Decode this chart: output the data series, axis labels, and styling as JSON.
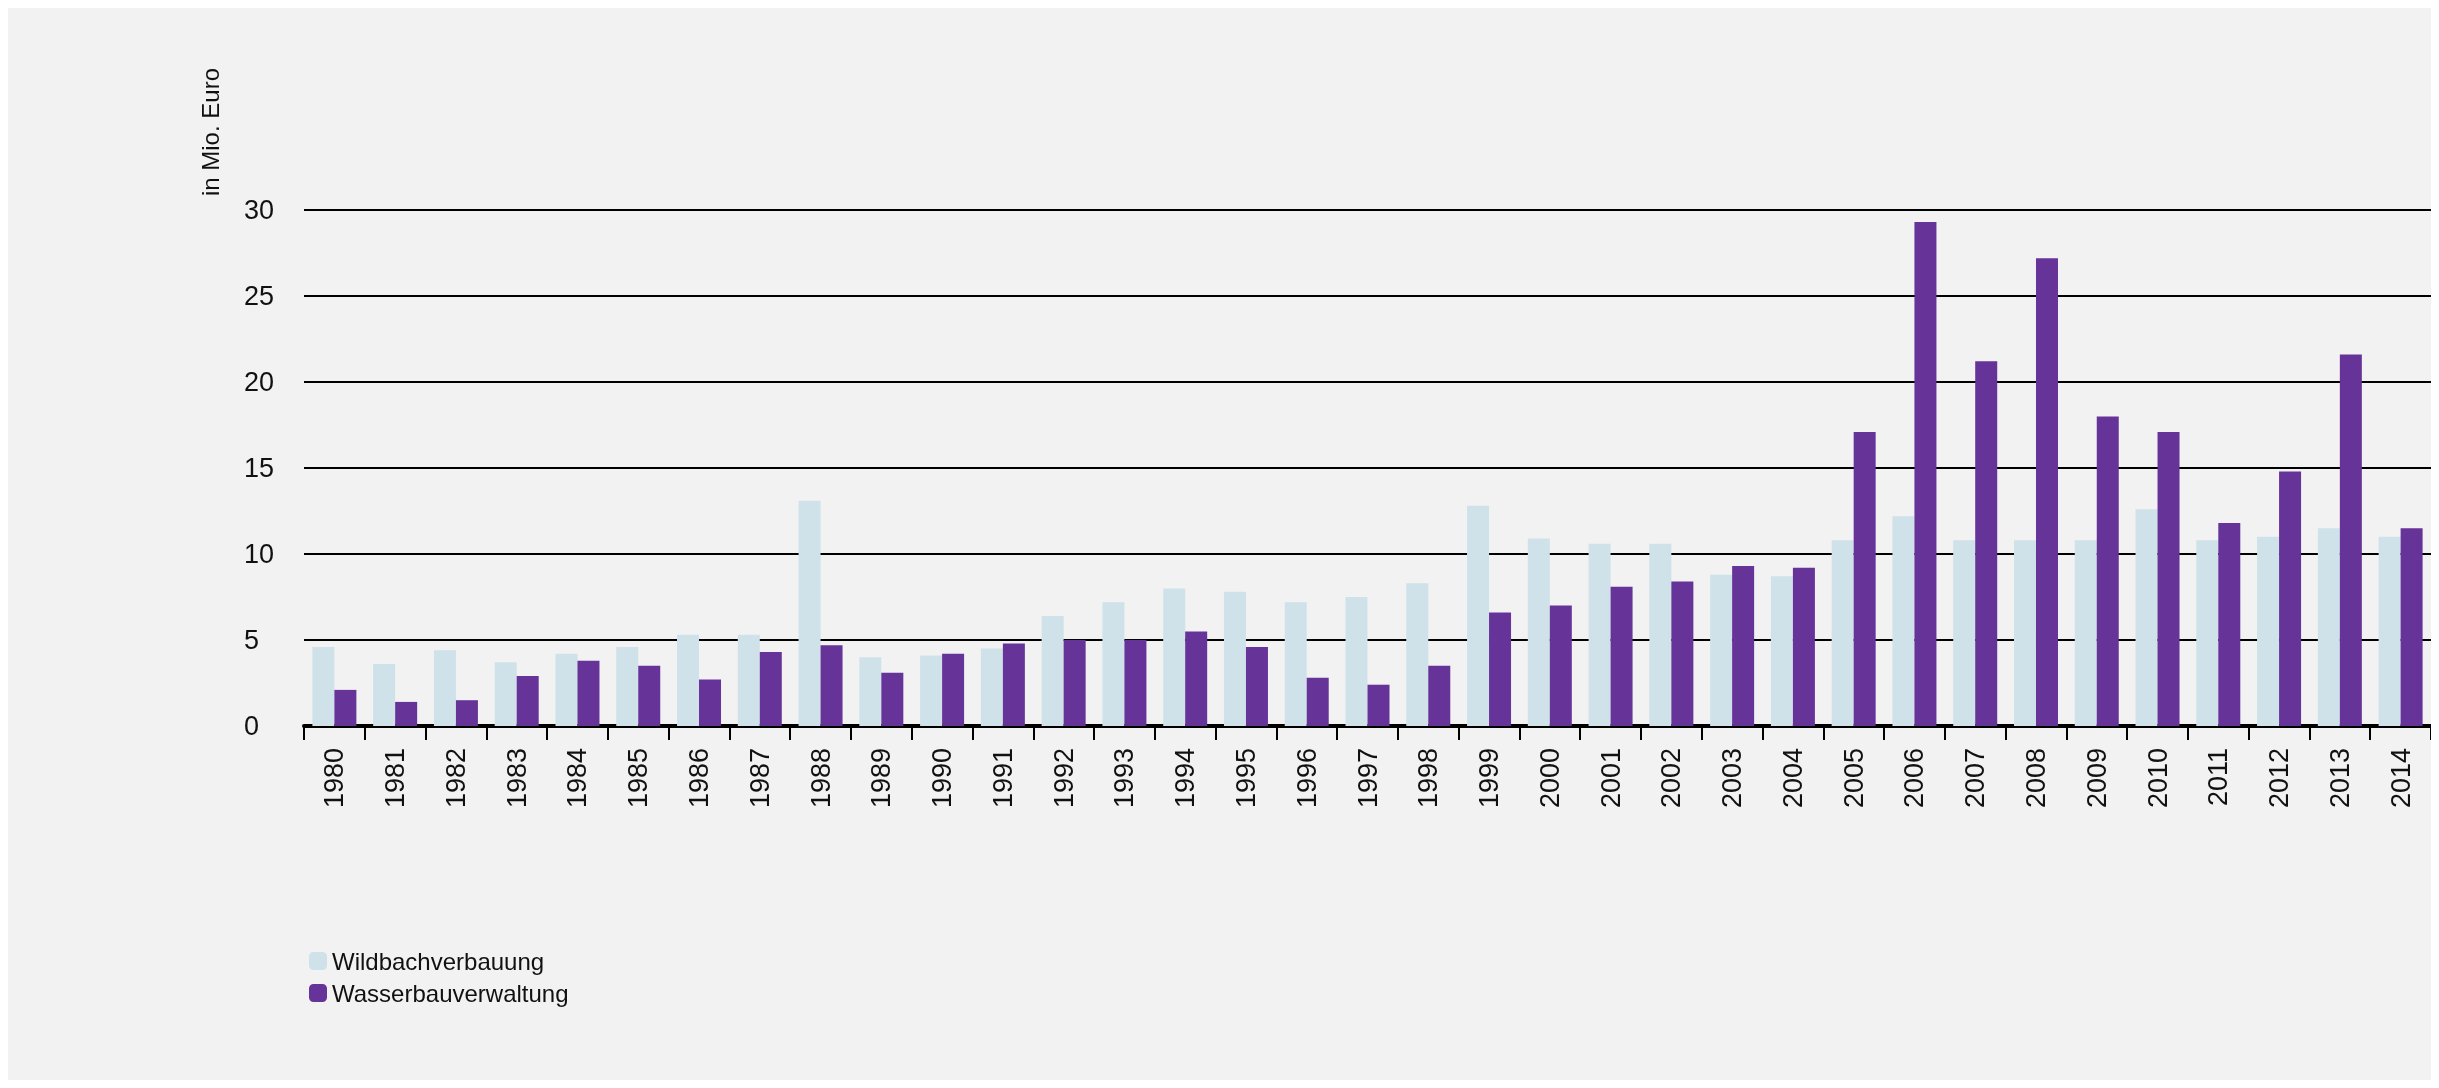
{
  "chart_data": {
    "type": "bar",
    "ylabel": "in Mio. Euro",
    "categories": [
      "1980",
      "1981",
      "1982",
      "1983",
      "1984",
      "1985",
      "1986",
      "1987",
      "1988",
      "1989",
      "1990",
      "1991",
      "1992",
      "1993",
      "1994",
      "1995",
      "1996",
      "1997",
      "1998",
      "1999",
      "2000",
      "2001",
      "2002",
      "2003",
      "2004",
      "2005",
      "2006",
      "2007",
      "2008",
      "2009",
      "2010",
      "2011",
      "2012",
      "2013",
      "2014"
    ],
    "series": [
      {
        "name": "Wildbachverbauung",
        "color": "#cfe2ea",
        "values": [
          4.6,
          3.6,
          4.4,
          3.7,
          4.2,
          4.6,
          5.3,
          5.3,
          13.1,
          4.0,
          4.1,
          4.5,
          6.4,
          7.2,
          8.0,
          7.8,
          7.2,
          7.5,
          8.3,
          12.8,
          10.9,
          10.6,
          10.6,
          8.8,
          8.7,
          10.8,
          12.2,
          10.8,
          10.8,
          10.8,
          12.6,
          10.8,
          11.0,
          11.5,
          11.0
        ]
      },
      {
        "name": "Wasserbauverwaltung",
        "color": "#663399",
        "values": [
          2.1,
          1.4,
          1.5,
          2.9,
          3.8,
          3.5,
          2.7,
          4.3,
          4.7,
          3.1,
          4.2,
          4.8,
          5.0,
          5.0,
          5.5,
          4.6,
          2.8,
          2.4,
          3.5,
          6.6,
          7.0,
          8.1,
          8.4,
          9.3,
          9.2,
          17.1,
          29.3,
          21.2,
          27.2,
          18.0,
          17.1,
          11.8,
          14.8,
          21.6,
          11.5
        ]
      }
    ],
    "ylim": [
      0,
      30
    ],
    "yticks": [
      0,
      5,
      10,
      15,
      20,
      25,
      30
    ],
    "grid": "y",
    "legend": "bottom left"
  }
}
